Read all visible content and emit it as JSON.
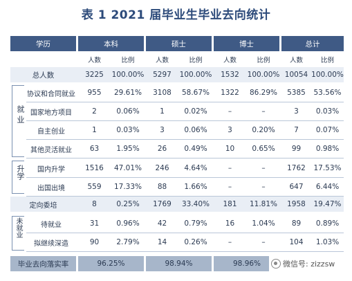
{
  "title": "表 1  2021 届毕业生毕业去向统计",
  "header": {
    "education": "学历",
    "groups": [
      "本科",
      "硕士",
      "博士",
      "总计"
    ],
    "sub": [
      "人数",
      "比例"
    ]
  },
  "total_row": {
    "label": "总人数",
    "values": [
      "3225",
      "100.00%",
      "5297",
      "100.00%",
      "1532",
      "100.00%",
      "10054",
      "100.00%"
    ]
  },
  "groups": {
    "employment": "就业",
    "further": "升学",
    "unemployed": "未就业"
  },
  "rows": [
    {
      "label": "协议和合同就业",
      "values": [
        "955",
        "29.61%",
        "3108",
        "58.67%",
        "1322",
        "86.29%",
        "5385",
        "53.56%"
      ]
    },
    {
      "label": "国家地方项目",
      "values": [
        "2",
        "0.06%",
        "1",
        "0.02%",
        "–",
        "–",
        "3",
        "0.03%"
      ]
    },
    {
      "label": "自主创业",
      "values": [
        "1",
        "0.03%",
        "3",
        "0.06%",
        "3",
        "0.20%",
        "7",
        "0.07%"
      ]
    },
    {
      "label": "其他灵活就业",
      "values": [
        "63",
        "1.95%",
        "26",
        "0.49%",
        "10",
        "0.65%",
        "99",
        "0.98%"
      ]
    },
    {
      "label": "国内升学",
      "values": [
        "1516",
        "47.01%",
        "246",
        "4.64%",
        "–",
        "–",
        "1762",
        "17.53%"
      ]
    },
    {
      "label": "出国出境",
      "values": [
        "559",
        "17.33%",
        "88",
        "1.66%",
        "–",
        "–",
        "647",
        "6.44%"
      ]
    },
    {
      "label": "定向委培",
      "values": [
        "8",
        "0.25%",
        "1769",
        "33.40%",
        "181",
        "11.81%",
        "1958",
        "19.47%"
      ]
    },
    {
      "label": "待就业",
      "values": [
        "31",
        "0.96%",
        "42",
        "0.79%",
        "16",
        "1.04%",
        "89",
        "0.89%"
      ]
    },
    {
      "label": "拟继续深造",
      "values": [
        "90",
        "2.79%",
        "14",
        "0.26%",
        "–",
        "–",
        "104",
        "1.03%"
      ]
    }
  ],
  "rate_row": {
    "label": "毕业去向落实率",
    "values": [
      "96.25%",
      "98.94%",
      "98.96%",
      ""
    ]
  },
  "watermark": "微信号: zizzsw",
  "colors": {
    "header": "#3f5a85",
    "band": "#e9eef5",
    "rate_bar": "#a7b6ca",
    "title": "#2c4a7a"
  }
}
